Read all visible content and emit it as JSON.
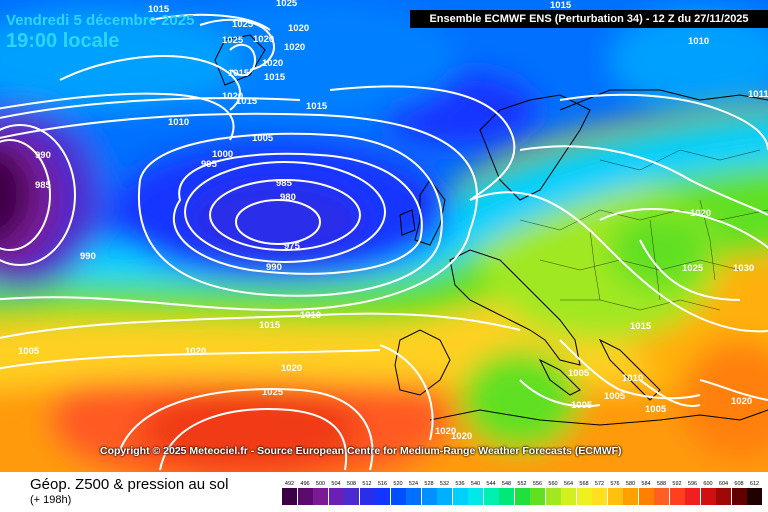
{
  "header": {
    "date_line": "Vendredi 5 décembre 2025",
    "time_line": "19:00 locale",
    "model_line": "Ensemble ECMWF ENS  (Perturbation 34)  - 12 Z du 27/11/2025"
  },
  "copyright": "Copyright © 2025 Meteociel.fr - Source European Centre for Medium-Range Weather Forecasts (ECMWF)",
  "footer": {
    "title": "Géop. Z500 & pression au sol",
    "subtitle": "(+ 198h)"
  },
  "legend": {
    "labels": [
      "492",
      "496",
      "500",
      "504",
      "508",
      "512",
      "516",
      "520",
      "524",
      "528",
      "532",
      "536",
      "540",
      "544",
      "548",
      "552",
      "556",
      "560",
      "564",
      "568",
      "572",
      "576",
      "580",
      "584",
      "588",
      "592",
      "596",
      "600",
      "604",
      "608",
      "612"
    ],
    "colors": [
      "#3c0044",
      "#5b0a6e",
      "#7a1a94",
      "#6a1fb5",
      "#4b2ad0",
      "#2a2ee8",
      "#1236ff",
      "#0050ff",
      "#0070ff",
      "#0090ff",
      "#00b0ff",
      "#00d0ff",
      "#00e8e8",
      "#00f0b0",
      "#00e878",
      "#20e040",
      "#60e020",
      "#a0e820",
      "#d0f020",
      "#f0f020",
      "#ffe020",
      "#ffc010",
      "#ffa000",
      "#ff8000",
      "#ff6020",
      "#ff4020",
      "#f02020",
      "#d01010",
      "#a00808",
      "#600000",
      "#200000"
    ]
  },
  "pressure_labels": [
    {
      "id": "1015-a",
      "text": "1015"
    },
    {
      "id": "1025-a",
      "text": "1025"
    },
    {
      "id": "1025-b",
      "text": "1025"
    },
    {
      "id": "1025-c",
      "text": "1025"
    },
    {
      "id": "1020-a",
      "text": "1020"
    },
    {
      "id": "1020-b",
      "text": "1020"
    },
    {
      "id": "1020-c",
      "text": "1020"
    },
    {
      "id": "1015-b",
      "text": "1015"
    },
    {
      "id": "1020-d",
      "text": "1020"
    },
    {
      "id": "1015-c",
      "text": "1015"
    },
    {
      "id": "1020-e",
      "text": "1020"
    },
    {
      "id": "1015-d",
      "text": "1015"
    },
    {
      "id": "1015-e",
      "text": "1015"
    },
    {
      "id": "1010-a",
      "text": "1010"
    },
    {
      "id": "1005-a",
      "text": "1005"
    },
    {
      "id": "1000-a",
      "text": "1000"
    },
    {
      "id": "995-a",
      "text": "995"
    },
    {
      "id": "990-a",
      "text": "990"
    },
    {
      "id": "985-a",
      "text": "985"
    },
    {
      "id": "990-b",
      "text": "990"
    },
    {
      "id": "985-b",
      "text": "985"
    },
    {
      "id": "980-a",
      "text": "980"
    },
    {
      "id": "975-a",
      "text": "975"
    },
    {
      "id": "990-c",
      "text": "990"
    },
    {
      "id": "1015-f",
      "text": "1015"
    },
    {
      "id": "1010-b",
      "text": "1010"
    },
    {
      "id": "1005-b",
      "text": "1005"
    },
    {
      "id": "1020-f",
      "text": "1020"
    },
    {
      "id": "1020-g",
      "text": "1020"
    },
    {
      "id": "1025-d",
      "text": "1025"
    },
    {
      "id": "1015-g",
      "text": "1015"
    },
    {
      "id": "1010-c",
      "text": "1010"
    },
    {
      "id": "1011-a",
      "text": "1011"
    },
    {
      "id": "1020-h",
      "text": "1020"
    },
    {
      "id": "1025-e",
      "text": "1025"
    },
    {
      "id": "1030-a",
      "text": "1030"
    },
    {
      "id": "1015-h",
      "text": "1015"
    },
    {
      "id": "1005-c",
      "text": "1005"
    },
    {
      "id": "1010-d",
      "text": "1010"
    },
    {
      "id": "1005-d",
      "text": "1005"
    },
    {
      "id": "1005-e",
      "text": "1005"
    },
    {
      "id": "1005-f",
      "text": "1005"
    },
    {
      "id": "1020-i",
      "text": "1020"
    },
    {
      "id": "1020-j",
      "text": "1020"
    },
    {
      "id": "1020-k",
      "text": "1020"
    }
  ]
}
